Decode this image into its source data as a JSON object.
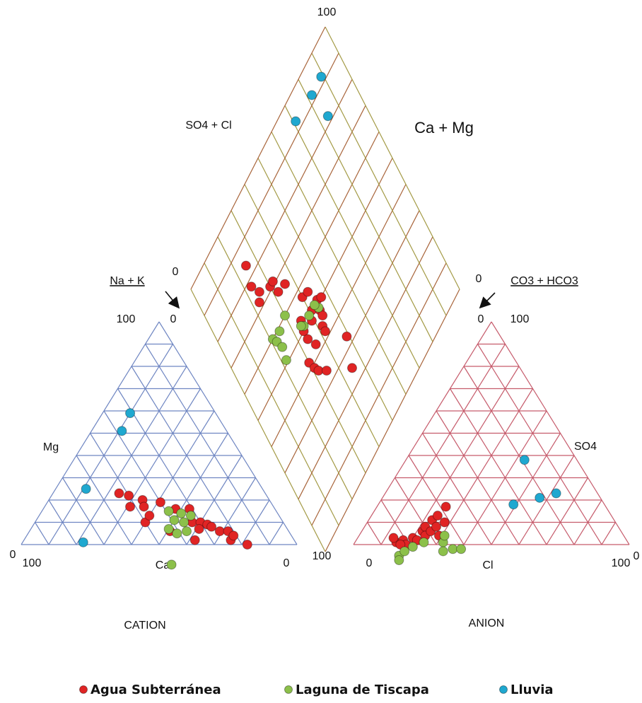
{
  "chart_data": {
    "type": "piper",
    "grid_step": 10,
    "panels": {
      "cation": {
        "title": "CATION",
        "color": "#6f86c2",
        "axes": [
          {
            "label": "Ca",
            "ticks": [
              100,
              0
            ]
          },
          {
            "label": "Mg",
            "ticks": [
              0,
              100
            ]
          },
          {
            "label": "Na + K",
            "ticks": [
              0,
              100
            ]
          }
        ]
      },
      "anion": {
        "title": "ANION",
        "color": "#c65c6c",
        "axes": [
          {
            "label": "Cl",
            "ticks": [
              0,
              100
            ]
          },
          {
            "label": "SO4",
            "ticks": [
              100,
              0
            ]
          },
          {
            "label": "CO3 + HCO3",
            "ticks": [
              0
            ]
          }
        ]
      },
      "diamond": {
        "colors": [
          "#a39a45",
          "#a8643a"
        ],
        "axes": [
          {
            "label": "SO4 + Cl",
            "ticks": [
              0,
              100
            ]
          },
          {
            "label": "Ca + Mg",
            "ticks": [
              0
            ]
          }
        ]
      }
    },
    "series": [
      {
        "name": "Agua Subterránea",
        "color": "#e02424",
        "cation": [
          [
            53,
            23
          ],
          [
            50,
            22
          ],
          [
            52,
            17
          ],
          [
            46,
            20
          ],
          [
            47,
            17
          ],
          [
            50,
            10
          ],
          [
            47,
            13
          ],
          [
            40,
            19
          ],
          [
            36,
            16
          ],
          [
            31,
            16
          ],
          [
            33,
            10
          ],
          [
            36,
            2
          ],
          [
            30,
            10
          ],
          [
            28,
            9
          ],
          [
            27,
            8
          ],
          [
            25,
            6
          ],
          [
            22,
            6
          ],
          [
            23,
            2
          ],
          [
            21,
            4
          ],
          [
            18,
            0
          ],
          [
            43,
            6
          ],
          [
            32,
            7
          ]
        ],
        "anion": [
          [
            15,
            1
          ],
          [
            17,
            2
          ],
          [
            20,
            3
          ],
          [
            22,
            6
          ],
          [
            22,
            8
          ],
          [
            23,
            11
          ],
          [
            24,
            13
          ],
          [
            25,
            17
          ],
          [
            28,
            10
          ],
          [
            19,
            0
          ],
          [
            22,
            2
          ],
          [
            24,
            4
          ],
          [
            13,
            3
          ],
          [
            25,
            6
          ],
          [
            26,
            8
          ],
          [
            17,
            0
          ],
          [
            29,
            4
          ]
        ],
        "diamond": [
          [
            25,
            84
          ],
          [
            23,
            78
          ],
          [
            25,
            74
          ],
          [
            23,
            72
          ],
          [
            30,
            71
          ],
          [
            32,
            71
          ],
          [
            36,
            66
          ],
          [
            32,
            67
          ],
          [
            40,
            57
          ],
          [
            43,
            56
          ],
          [
            41,
            51
          ],
          [
            45,
            51
          ],
          [
            47,
            50
          ],
          [
            44,
            48
          ],
          [
            35,
            53
          ],
          [
            39,
            49
          ],
          [
            42,
            44
          ],
          [
            34,
            50
          ],
          [
            42,
            42
          ],
          [
            34,
            47
          ],
          [
            36,
            43
          ],
          [
            49,
            33
          ],
          [
            30,
            42
          ],
          [
            31,
            39
          ],
          [
            32,
            37
          ],
          [
            35,
            34
          ],
          [
            45,
            25
          ],
          [
            44,
            46
          ]
        ]
      },
      {
        "name": "Laguna de Tiscapa",
        "color": "#8cc04a",
        "cation": [
          [
            39,
            15
          ],
          [
            39,
            11
          ],
          [
            43,
            7
          ],
          [
            35,
            14
          ],
          [
            36,
            10
          ],
          [
            37,
            6
          ],
          [
            32,
            13
          ],
          [
            41,
            5
          ],
          [
            50,
            -9
          ]
        ],
        "anion": [
          [
            19,
            -5
          ],
          [
            20,
            -3
          ],
          [
            22,
            -1
          ],
          [
            25,
            1
          ],
          [
            32,
            1
          ],
          [
            31,
            4
          ],
          [
            37,
            -2
          ],
          [
            40,
            -2
          ],
          [
            34,
            -3
          ],
          [
            20,
            -7
          ]
        ],
        "diamond": [
          [
            30,
            60
          ],
          [
            39,
            51
          ],
          [
            44,
            49
          ],
          [
            35,
            51
          ],
          [
            25,
            59
          ],
          [
            21,
            60
          ],
          [
            22,
            58
          ],
          [
            23,
            55
          ],
          [
            22,
            51
          ],
          [
            34,
            52
          ],
          [
            43,
            51
          ]
        ]
      },
      {
        "name": "Lluvia",
        "color": "#1fa8d0",
        "cation": [
          [
            31,
            59
          ],
          [
            38,
            51
          ],
          [
            64,
            25
          ],
          [
            77,
            1
          ]
        ],
        "anion": [
          [
            43,
            38
          ],
          [
            49,
            18
          ],
          [
            57,
            21
          ],
          [
            62,
            23
          ]
        ],
        "diamond": [
          [
            89,
            92
          ],
          [
            82,
            92
          ],
          [
            84,
            82
          ],
          [
            71,
            93
          ]
        ]
      }
    ]
  }
}
